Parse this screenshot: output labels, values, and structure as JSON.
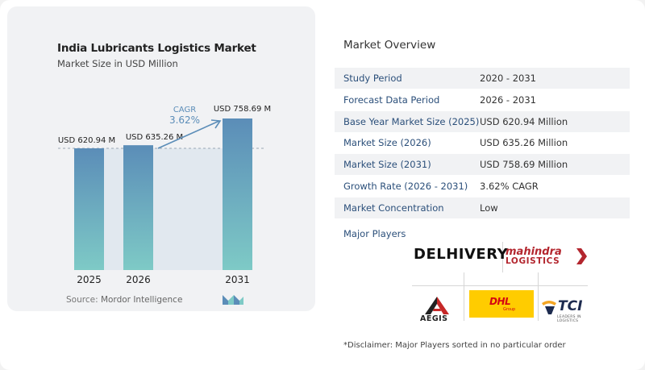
{
  "chart": {
    "title": "India Lubricants Logistics Market",
    "subtitle": "Market Size in USD Million",
    "cagr_label": "CAGR",
    "cagr_value": "3.62%",
    "source_label": "Source:",
    "source_value": "Mordor Intelligence",
    "colors": {
      "bar_top": "#5b8db8",
      "bar_bottom": "#7ecac6",
      "cagr": "#5b8db8",
      "band": "#e1e8ef"
    }
  },
  "chart_data": {
    "type": "bar",
    "categories": [
      "2025",
      "2026",
      "2031"
    ],
    "values": [
      620.94,
      635.26,
      758.69
    ],
    "data_labels": [
      "USD 620.94 M",
      "USD 635.26 M",
      "USD 758.69 M"
    ],
    "title": "India Lubricants Logistics Market",
    "subtitle": "Market Size in USD Million",
    "xlabel": "",
    "ylabel": "",
    "annotation": "CAGR 3.62%"
  },
  "overview": {
    "title": "Market Overview",
    "rows": [
      {
        "label": "Study Period",
        "value": "2020 - 2031"
      },
      {
        "label": "Forecast Data Period",
        "value": "2026 - 2031"
      },
      {
        "label": "Base Year Market Size (2025)",
        "value": "USD 620.94 Million"
      },
      {
        "label": "Market Size (2026)",
        "value": "USD 635.26 Million"
      },
      {
        "label": "Market Size (2031)",
        "value": "USD 758.69 Million"
      },
      {
        "label": "Growth Rate (2026 - 2031)",
        "value": "3.62% CAGR"
      },
      {
        "label": "Market Concentration",
        "value": "Low"
      }
    ],
    "players_title": "Major Players",
    "players": {
      "delhivery": "DELHIVERY",
      "mahindra_top": "mahindra",
      "mahindra_bottom": "LOGISTICS",
      "aegis": "AEGIS",
      "dhl": "DHL",
      "dhl_sub": "Group",
      "tci": "TCI",
      "tci_sub": "LEADERS IN LOGISTICS"
    },
    "disclaimer": "*Disclaimer: Major Players sorted in no particular order"
  }
}
